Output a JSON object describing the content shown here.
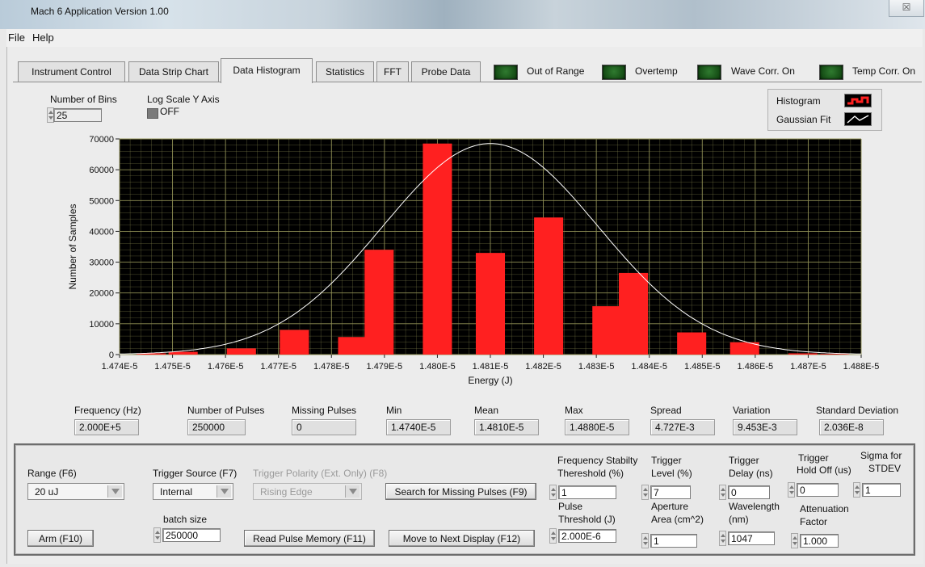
{
  "window": {
    "title": "Mach 6 Application Version 1.00",
    "close_glyph": "☒"
  },
  "menu": [
    "File",
    "Help"
  ],
  "tabs": [
    "Instrument Control",
    "Data Strip Chart",
    "Data Histogram",
    "Statistics",
    "FFT",
    "Probe Data"
  ],
  "active_tab": "Data Histogram",
  "indicators": [
    "Out of Range",
    "Overtemp",
    "Wave Corr. On",
    "Temp Corr. On"
  ],
  "bins": {
    "label": "Number of Bins",
    "value": "25"
  },
  "log_scale": {
    "label": "Log Scale Y Axis",
    "state": "OFF"
  },
  "legend": {
    "histogram": "Histogram",
    "gaussian": "Gaussian Fit"
  },
  "chart_data": {
    "type": "bar",
    "xlabel": "Energy (J)",
    "ylabel": "Number of Samples",
    "ylim": [
      0,
      70000
    ],
    "yticks": [
      "0",
      "10000",
      "20000",
      "30000",
      "40000",
      "50000",
      "60000",
      "70000"
    ],
    "xticks": [
      "1.474E-5",
      "1.475E-5",
      "1.476E-5",
      "1.477E-5",
      "1.478E-5",
      "1.479E-5",
      "1.480E-5",
      "1.481E-5",
      "1.482E-5",
      "1.483E-5",
      "1.484E-5",
      "1.485E-5",
      "1.486E-5",
      "1.487E-5",
      "1.488E-5"
    ],
    "xlim": [
      1.474e-05,
      1.488e-05
    ],
    "grid": true,
    "bars": [
      {
        "x": 1.4746e-05,
        "value": 400
      },
      {
        "x": 1.4752e-05,
        "value": 900
      },
      {
        "x": 1.4763e-05,
        "value": 2000
      },
      {
        "x": 1.4773e-05,
        "value": 8000
      },
      {
        "x": 1.4784e-05,
        "value": 5700
      },
      {
        "x": 1.4789e-05,
        "value": 34000
      },
      {
        "x": 1.48e-05,
        "value": 68500
      },
      {
        "x": 1.481e-05,
        "value": 33000
      },
      {
        "x": 1.4821e-05,
        "value": 44500
      },
      {
        "x": 1.4832e-05,
        "value": 15700
      },
      {
        "x": 1.4837e-05,
        "value": 26500
      },
      {
        "x": 1.4848e-05,
        "value": 7200
      },
      {
        "x": 1.4858e-05,
        "value": 4000
      },
      {
        "x": 1.4869e-05,
        "value": 400
      },
      {
        "x": 1.4875e-05,
        "value": 200
      }
    ],
    "bar_width": 5.5e-09,
    "gaussian_fit": {
      "mean": 1.481e-05,
      "stdev": 2.036e-08,
      "peak": 68500
    },
    "colors": {
      "bar": "#ff2020",
      "background": "#000000",
      "grid": "#8f8f55",
      "fit": "#ffffff"
    }
  },
  "stats": [
    {
      "label": "Frequency (Hz)",
      "value": "2.000E+5"
    },
    {
      "label": "Number of Pulses",
      "value": "250000"
    },
    {
      "label": "Missing Pulses",
      "value": "0"
    },
    {
      "label": "Min",
      "value": "1.4740E-5"
    },
    {
      "label": "Mean",
      "value": "1.4810E-5"
    },
    {
      "label": "Max",
      "value": "1.4880E-5"
    },
    {
      "label": "Spread",
      "value": "4.727E-3"
    },
    {
      "label": "Variation",
      "value": "9.453E-3"
    },
    {
      "label": "Standard Deviation",
      "value": "2.036E-8"
    }
  ],
  "controls": {
    "range": {
      "label": "Range (F6)",
      "value": "20 uJ"
    },
    "trigger_source": {
      "label": "Trigger Source (F7)",
      "value": "Internal"
    },
    "trigger_polarity": {
      "label": "Trigger Polarity (Ext. Only) (F8)",
      "value": "Rising Edge"
    },
    "search_missing": "Search for Missing Pulses (F9)",
    "arm": "Arm (F10)",
    "batch_size": {
      "label": "batch size",
      "value": "250000"
    },
    "read_memory": "Read Pulse Memory (F11)",
    "next_display": "Move to Next Display (F12)",
    "freq_stability": {
      "label1": "Frequency Stabilty",
      "label2": "Thereshold (%)",
      "value": "1"
    },
    "pulse_threshold": {
      "label1": "Pulse",
      "label2": "Threshold (J)",
      "value": "2.000E-6"
    },
    "trigger_level": {
      "label1": "Trigger",
      "label2": "Level (%)",
      "value": "7"
    },
    "aperture": {
      "label1": "Aperture",
      "label2": "Area (cm^2)",
      "value": "1"
    },
    "trigger_delay": {
      "label1": "Trigger",
      "label2": "Delay (ns)",
      "value": "0"
    },
    "wavelength": {
      "label1": "Wavelength",
      "label2": "(nm)",
      "value": "1047"
    },
    "hold_off": {
      "label1": "Trigger",
      "label2": "Hold Off (us)",
      "value": "0"
    },
    "attenuation": {
      "label1": "Attenuation",
      "label2": "Factor",
      "value": "1.000"
    },
    "sigma": {
      "label1": "Sigma for",
      "label2": "STDEV",
      "value": "1"
    }
  }
}
